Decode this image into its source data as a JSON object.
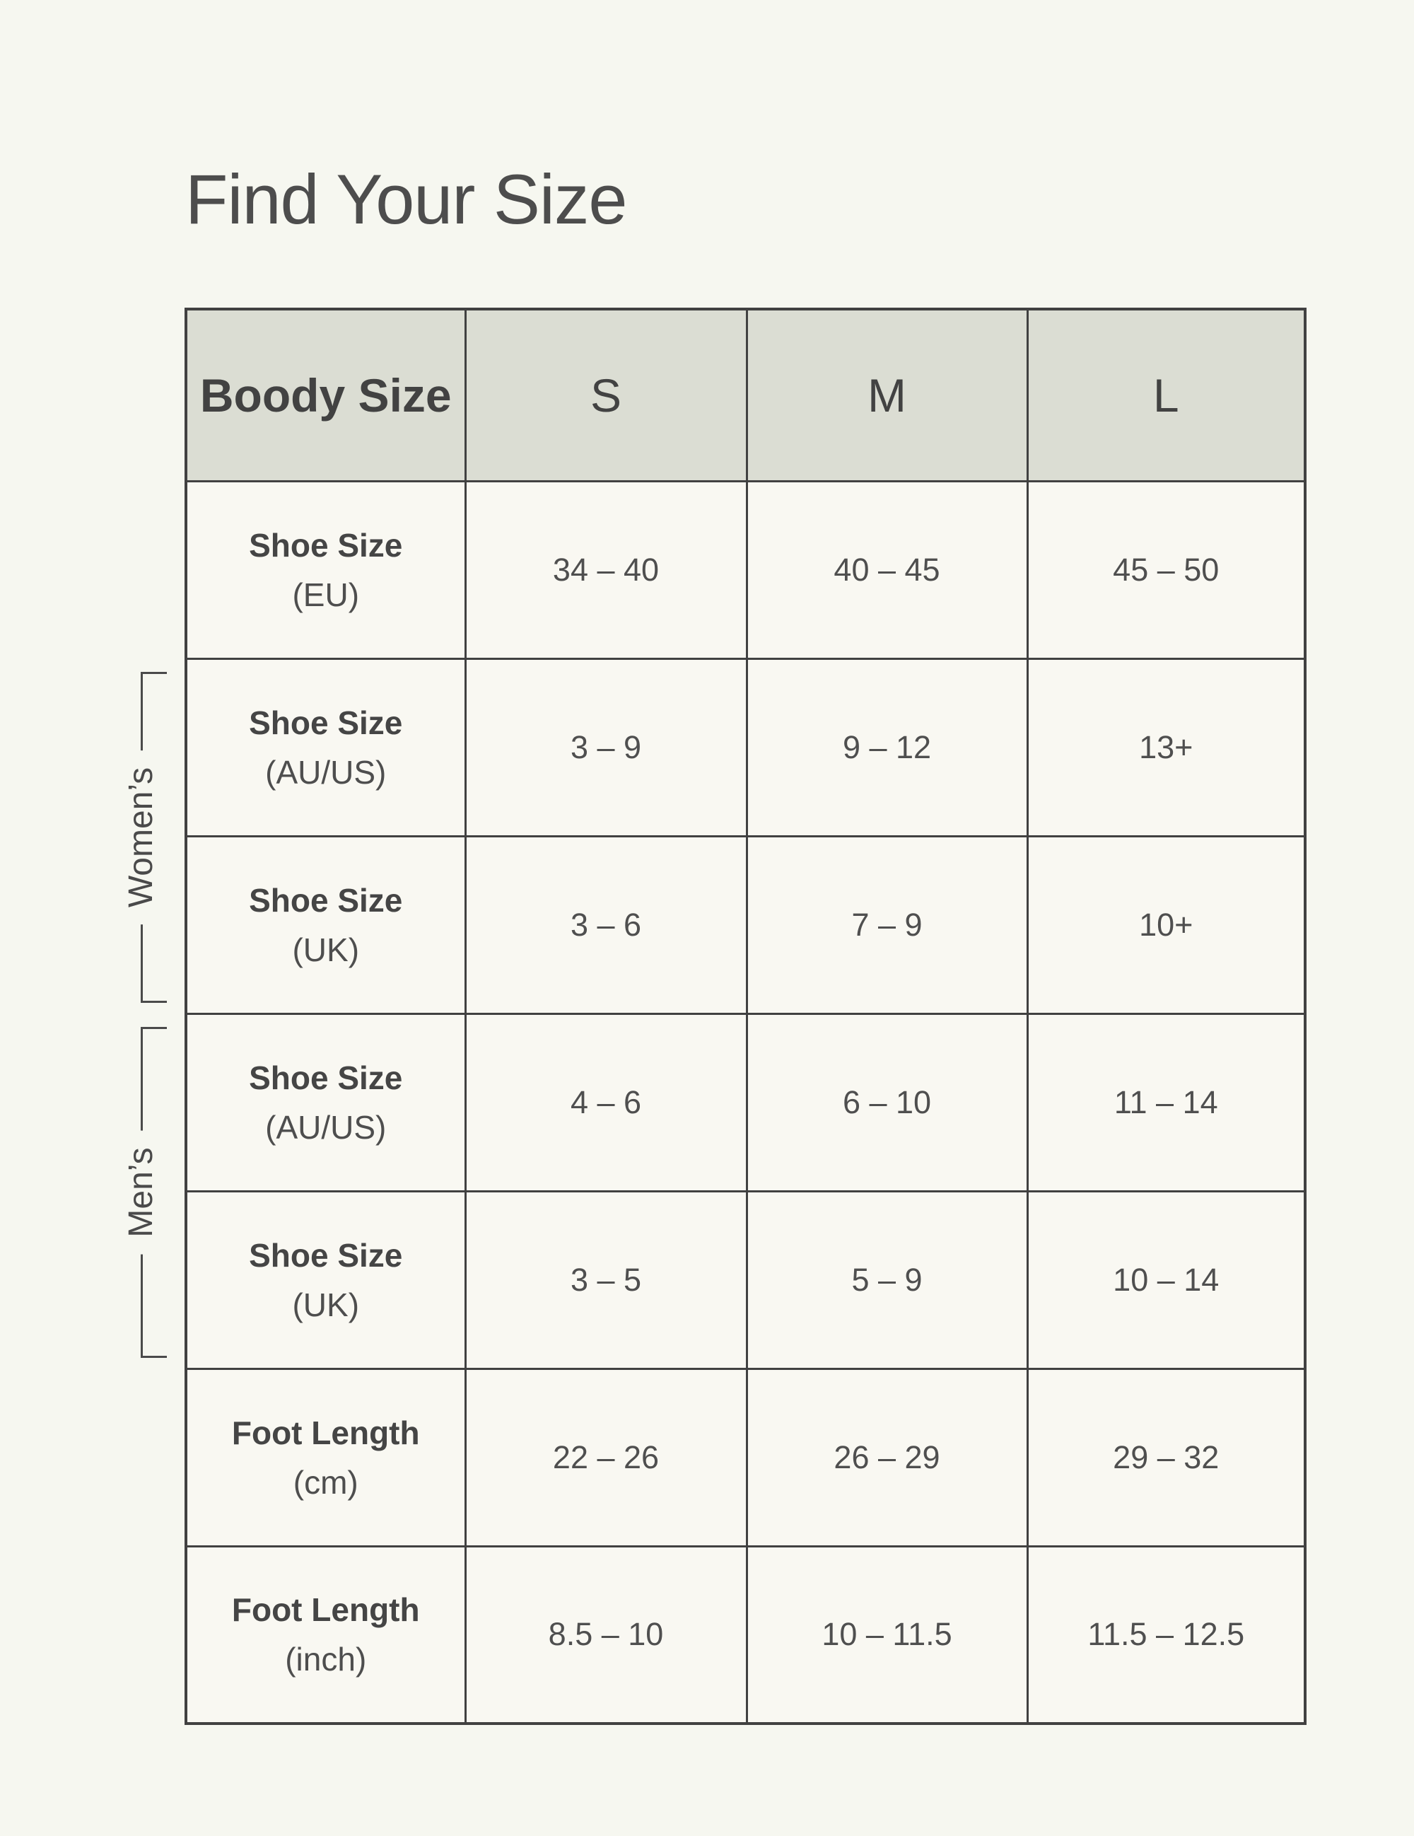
{
  "page": {
    "title": "Find Your Size",
    "background": "#f6f7f0"
  },
  "colors": {
    "header_bg": "#dbddd3",
    "cell_bg": "#f9f8f2",
    "border": "#414141",
    "text": "#4a4a4a"
  },
  "groups": {
    "womens": "Women’s",
    "mens": "Men’s"
  },
  "size_table": {
    "header": {
      "label": "Boody Size",
      "sizes": [
        "S",
        "M",
        "L"
      ]
    },
    "rows": [
      {
        "label": "Shoe Size",
        "unit": "(EU)",
        "group": "unisex",
        "values": [
          "34 – 40",
          "40 – 45",
          "45 – 50"
        ]
      },
      {
        "label": "Shoe Size",
        "unit": "(AU/US)",
        "group": "womens",
        "values": [
          "3 – 9",
          "9 – 12",
          "13+"
        ]
      },
      {
        "label": "Shoe Size",
        "unit": "(UK)",
        "group": "womens",
        "values": [
          "3 – 6",
          "7 – 9",
          "10+"
        ]
      },
      {
        "label": "Shoe Size",
        "unit": "(AU/US)",
        "group": "mens",
        "values": [
          "4 – 6",
          "6 – 10",
          "11 – 14"
        ]
      },
      {
        "label": "Shoe Size",
        "unit": "(UK)",
        "group": "mens",
        "values": [
          "3 – 5",
          "5 – 9",
          "10 – 14"
        ]
      },
      {
        "label": "Foot Length",
        "unit": "(cm)",
        "group": "unisex",
        "values": [
          "22 – 26",
          "26 – 29",
          "29 – 32"
        ]
      },
      {
        "label": "Foot Length",
        "unit": "(inch)",
        "group": "unisex",
        "values": [
          "8.5 – 10",
          "10 – 11.5",
          "11.5 – 12.5"
        ]
      }
    ]
  }
}
